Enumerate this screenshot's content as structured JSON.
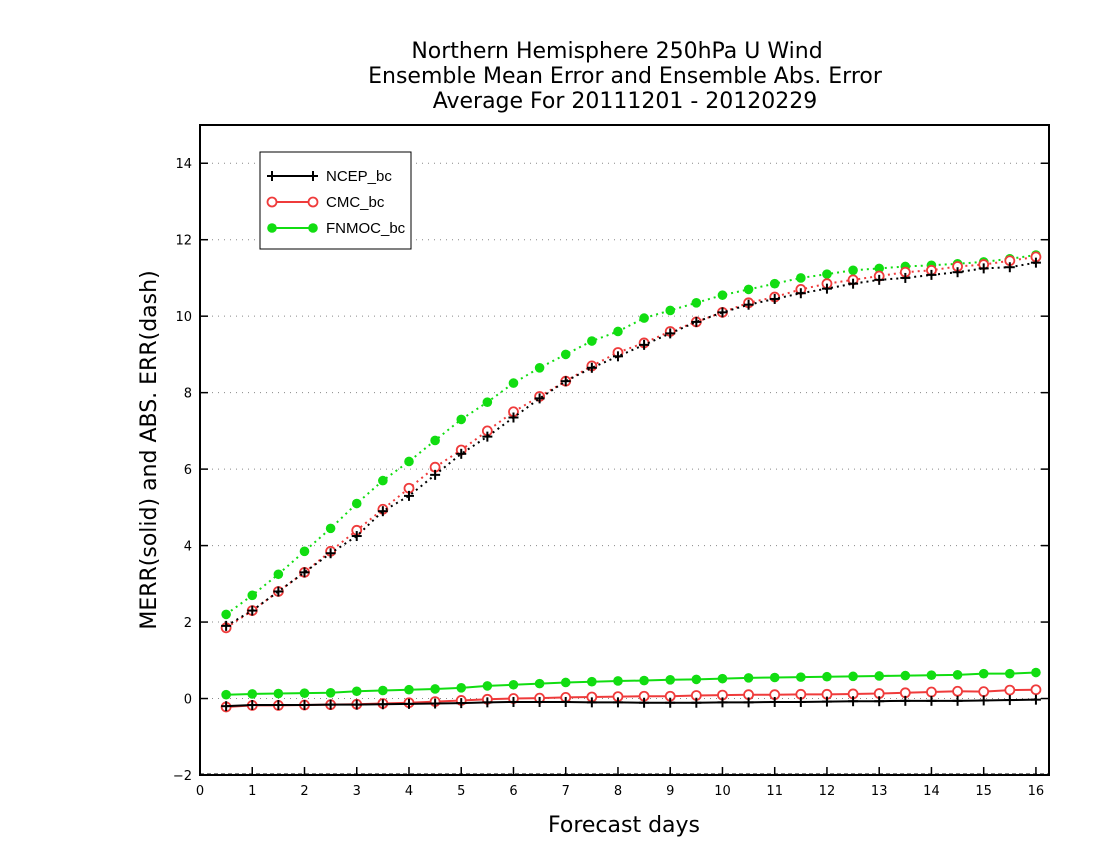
{
  "chart_data": {
    "type": "line",
    "title_lines": [
      "Northern Hemisphere 250hPa U Wind",
      "Ensemble Mean Error and Ensemble Abs. Error",
      "Average For 20111201 - 20120229"
    ],
    "xlabel": "Forecast days",
    "ylabel": "MERR(solid) and ABS. ERR(dash)",
    "xlim": [
      0,
      16.25
    ],
    "ylim": [
      -2,
      15
    ],
    "xticks": [
      0,
      1,
      2,
      3,
      4,
      5,
      6,
      7,
      8,
      9,
      10,
      11,
      12,
      13,
      14,
      15,
      16
    ],
    "yticks": [
      -2,
      0,
      2,
      4,
      6,
      8,
      10,
      12,
      14
    ],
    "grid": true,
    "legend_position": "top-left",
    "x": [
      0.5,
      1,
      1.5,
      2,
      2.5,
      3,
      3.5,
      4,
      4.5,
      5,
      5.5,
      6,
      6.5,
      7,
      7.5,
      8,
      8.5,
      9,
      9.5,
      10,
      10.5,
      11,
      11.5,
      12,
      12.5,
      13,
      13.5,
      14,
      14.5,
      15,
      15.5,
      16
    ],
    "series": [
      {
        "name": "NCEP_bc",
        "color": "#000000",
        "marker": "plus",
        "merr": [
          -0.2,
          -0.17,
          -0.17,
          -0.17,
          -0.16,
          -0.16,
          -0.15,
          -0.14,
          -0.13,
          -0.12,
          -0.1,
          -0.09,
          -0.09,
          -0.09,
          -0.1,
          -0.1,
          -0.11,
          -0.11,
          -0.11,
          -0.1,
          -0.1,
          -0.09,
          -0.09,
          -0.08,
          -0.07,
          -0.07,
          -0.06,
          -0.06,
          -0.06,
          -0.05,
          -0.04,
          -0.03
        ],
        "abs_err": [
          1.9,
          2.3,
          2.8,
          3.3,
          3.8,
          4.25,
          4.9,
          5.3,
          5.85,
          6.4,
          6.85,
          7.35,
          7.85,
          8.3,
          8.65,
          8.95,
          9.25,
          9.55,
          9.85,
          10.1,
          10.3,
          10.45,
          10.6,
          10.72,
          10.85,
          10.95,
          11.0,
          11.08,
          11.15,
          11.25,
          11.28,
          11.4
        ]
      },
      {
        "name": "CMC_bc",
        "color": "#ef3b3b",
        "marker": "circle",
        "merr": [
          -0.22,
          -0.18,
          -0.18,
          -0.17,
          -0.16,
          -0.15,
          -0.13,
          -0.11,
          -0.08,
          -0.05,
          -0.02,
          0.0,
          0.01,
          0.03,
          0.04,
          0.05,
          0.06,
          0.06,
          0.08,
          0.09,
          0.1,
          0.1,
          0.11,
          0.11,
          0.12,
          0.13,
          0.15,
          0.17,
          0.19,
          0.18,
          0.22,
          0.23
        ],
        "abs_err": [
          1.85,
          2.3,
          2.8,
          3.3,
          3.85,
          4.4,
          4.95,
          5.5,
          6.05,
          6.5,
          7.0,
          7.5,
          7.9,
          8.3,
          8.7,
          9.05,
          9.3,
          9.6,
          9.85,
          10.1,
          10.35,
          10.5,
          10.7,
          10.85,
          10.95,
          11.05,
          11.15,
          11.2,
          11.3,
          11.35,
          11.45,
          11.55
        ]
      },
      {
        "name": "FNMOC_bc",
        "color": "#11dd11",
        "marker": "dot",
        "merr": [
          0.1,
          0.12,
          0.13,
          0.14,
          0.15,
          0.19,
          0.21,
          0.23,
          0.25,
          0.28,
          0.33,
          0.36,
          0.39,
          0.42,
          0.44,
          0.46,
          0.47,
          0.49,
          0.5,
          0.52,
          0.54,
          0.55,
          0.56,
          0.57,
          0.58,
          0.59,
          0.6,
          0.61,
          0.62,
          0.65,
          0.65,
          0.68
        ],
        "abs_err": [
          2.2,
          2.7,
          3.25,
          3.85,
          4.45,
          5.1,
          5.7,
          6.2,
          6.75,
          7.3,
          7.75,
          8.25,
          8.65,
          9.0,
          9.35,
          9.6,
          9.95,
          10.15,
          10.35,
          10.55,
          10.7,
          10.85,
          11.0,
          11.1,
          11.2,
          11.25,
          11.3,
          11.33,
          11.37,
          11.42,
          11.5,
          11.6
        ]
      }
    ]
  }
}
